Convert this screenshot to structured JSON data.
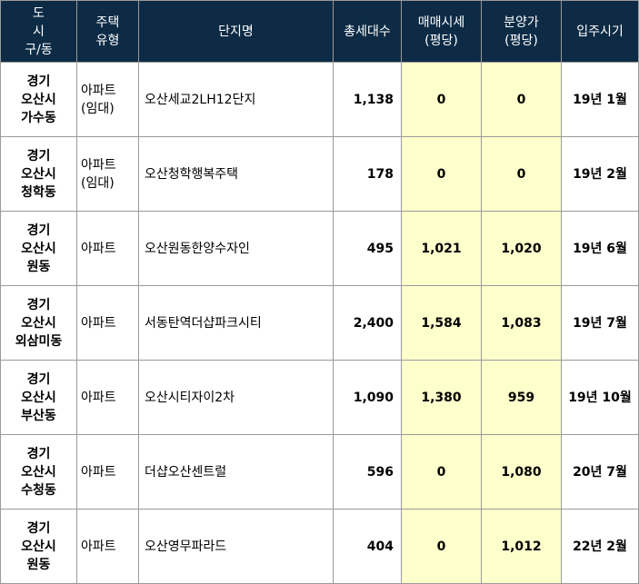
{
  "headers": {
    "region": "도\n시\n구/동",
    "type": "주택\n유형",
    "name": "단지명",
    "households": "총세대수",
    "trade_price": "매매시세\n(평당)",
    "sale_price": "분양가\n(평당)",
    "move_in": "입주시기"
  },
  "rows": [
    {
      "region": "경기\n오산시\n가수동",
      "type": "아파트\n(임대)",
      "name": "오산세교2LH12단지",
      "households": "1,138",
      "trade_price": "0",
      "sale_price": "0",
      "move_in": "19년 1월"
    },
    {
      "region": "경기\n오산시\n청학동",
      "type": "아파트\n(임대)",
      "name": "오산청학행복주택",
      "households": "178",
      "trade_price": "0",
      "sale_price": "0",
      "move_in": "19년 2월"
    },
    {
      "region": "경기\n오산시\n원동",
      "type": "아파트",
      "name": "오산원동한양수자인",
      "households": "495",
      "trade_price": "1,021",
      "sale_price": "1,020",
      "move_in": "19년 6월"
    },
    {
      "region": "경기\n오산시\n외삼미동",
      "type": "아파트",
      "name": "서동탄역더샵파크시티",
      "households": "2,400",
      "trade_price": "1,584",
      "sale_price": "1,083",
      "move_in": "19년 7월"
    },
    {
      "region": "경기\n오산시\n부산동",
      "type": "아파트",
      "name": "오산시티자이2차",
      "households": "1,090",
      "trade_price": "1,380",
      "sale_price": "959",
      "move_in": "19년 10월"
    },
    {
      "region": "경기\n오산시\n수청동",
      "type": "아파트",
      "name": "더샵오산센트럴",
      "households": "596",
      "trade_price": "0",
      "sale_price": "1,080",
      "move_in": "20년 7월"
    },
    {
      "region": "경기\n오산시\n원동",
      "type": "아파트",
      "name": "오산영무파라드",
      "households": "404",
      "trade_price": "0",
      "sale_price": "1,012",
      "move_in": "22년 2월"
    }
  ]
}
